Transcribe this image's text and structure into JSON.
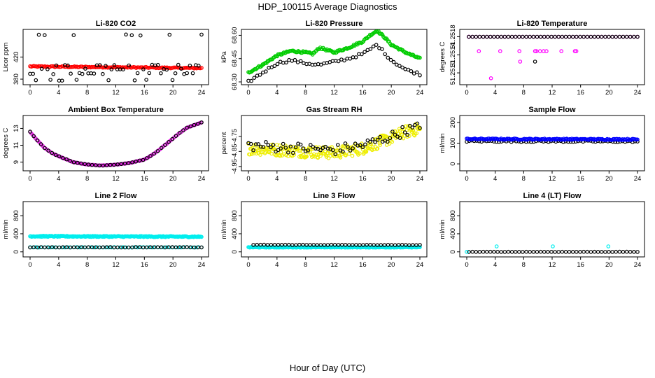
{
  "title": "HDP_100115  Average Diagnostics",
  "xlabel": "Hour of Day (UTC)",
  "chart_data": [
    {
      "type": "scatter",
      "title": "Li-820 CO2",
      "ylabel": "Licor ppm",
      "xlim": [
        0,
        24
      ],
      "ylim": [
        375,
        465
      ],
      "xticks": [
        0,
        4,
        8,
        12,
        16,
        20,
        24
      ],
      "xticklabels": [
        "0",
        "4",
        "8",
        "12",
        "16",
        "20",
        "24"
      ],
      "yticks": [
        380,
        420
      ],
      "yticklabels": [
        "380",
        "420"
      ],
      "series": [
        {
          "name": "CO2 red",
          "color": "#ff0000",
          "gen": "line",
          "x0": 0,
          "x1": 24,
          "y0": 403,
          "y1": 400,
          "spread": 1,
          "n": 140
        },
        {
          "name": "CO2 black",
          "color": "#000000",
          "gen": "levels",
          "levels": [
            378,
            390,
            398,
            405,
            460
          ],
          "n": 60
        }
      ]
    },
    {
      "type": "scatter",
      "title": "Li-820 Pressure",
      "ylabel": "kPa",
      "xlim": [
        0,
        24
      ],
      "ylim": [
        68.3,
        68.62
      ],
      "xticks": [
        0,
        4,
        8,
        12,
        16,
        20,
        24
      ],
      "xticklabels": [
        "0",
        "4",
        "8",
        "12",
        "16",
        "20",
        "24"
      ],
      "yticks": [
        68.3,
        68.45,
        68.6
      ],
      "yticklabels": [
        "68.30",
        "68.45",
        "68.60"
      ],
      "series": [
        {
          "name": "Pressure green",
          "color": "#00cc00",
          "gen": "path",
          "x": [
            0,
            2,
            4,
            6,
            8,
            9,
            10,
            12,
            14,
            16,
            17,
            18,
            19,
            20,
            22,
            24
          ],
          "y": [
            68.36,
            68.41,
            68.47,
            68.5,
            68.49,
            68.48,
            68.52,
            68.49,
            68.52,
            68.56,
            68.6,
            68.63,
            68.59,
            68.54,
            68.49,
            68.45
          ],
          "spread": 0.006,
          "n": 180
        },
        {
          "name": "Pressure black",
          "color": "#000000",
          "gen": "path",
          "x": [
            0,
            2,
            4,
            6,
            8,
            10,
            12,
            14,
            16,
            18,
            20,
            22,
            24
          ],
          "y": [
            68.3,
            68.36,
            68.42,
            68.44,
            68.42,
            68.41,
            68.43,
            68.45,
            68.48,
            68.54,
            68.44,
            68.38,
            68.35
          ],
          "spread": 0.008,
          "n": 60
        }
      ]
    },
    {
      "type": "scatter",
      "title": "Li-820 Temperature",
      "ylabel": "degrees C",
      "xlim": [
        0,
        24
      ],
      "ylim": [
        51.2508,
        51.2519
      ],
      "xticks": [
        0,
        4,
        8,
        12,
        16,
        20,
        24
      ],
      "xticklabels": [
        "0",
        "4",
        "8",
        "12",
        "16",
        "20",
        "24"
      ],
      "yticks": [
        51.251,
        51.2514,
        51.2518
      ],
      "yticklabels": [
        "51.2510",
        "51.2514",
        "51.2518"
      ],
      "series": [
        {
          "name": "Temperature magenta",
          "color": "#ff00ff",
          "gen": "scatterpts",
          "x": [
            0.3,
            1.7,
            3.4,
            4.7,
            7.4,
            7.5,
            9.6,
            9.8,
            10.3,
            10.8,
            11.2,
            13.3,
            15.2,
            15.4
          ],
          "y": [
            51.2518,
            51.25148,
            51.25088,
            51.25148,
            51.25148,
            51.25125,
            51.25148,
            51.25148,
            51.25148,
            51.25148,
            51.25148,
            51.25148,
            51.25148,
            51.25148
          ],
          "fill": [
            51.2518
          ],
          "n": 48
        },
        {
          "name": "Temperature black",
          "color": "#000000",
          "gen": "scatterpts",
          "x": [
            9.6
          ],
          "y": [
            51.25125
          ],
          "fill": [
            51.2518
          ],
          "n": 48
        }
      ]
    },
    {
      "type": "scatter",
      "title": "Ambient Box Temperature",
      "ylabel": "degrees C",
      "xlim": [
        0,
        24
      ],
      "ylim": [
        8.3,
        14.2
      ],
      "xticks": [
        0,
        4,
        8,
        12,
        16,
        20,
        24
      ],
      "xticklabels": [
        "0",
        "4",
        "8",
        "12",
        "16",
        "20",
        "24"
      ],
      "yticks": [
        9,
        11,
        13
      ],
      "yticklabels": [
        "9",
        "11",
        "13"
      ],
      "series": [
        {
          "name": "Box temp magenta",
          "color": "#dd22dd",
          "gen": "path",
          "x": [
            0,
            1,
            2,
            3,
            4,
            6,
            8,
            10,
            12,
            14,
            16,
            17,
            18,
            19,
            20,
            21,
            22,
            23,
            24
          ],
          "y": [
            12.6,
            11.6,
            10.7,
            10.1,
            9.7,
            9.0,
            8.7,
            8.6,
            8.7,
            8.9,
            9.3,
            9.8,
            10.4,
            11.1,
            11.8,
            12.5,
            13.1,
            13.4,
            13.7
          ],
          "spread": 0.02,
          "n": 150
        },
        {
          "name": "Box temp black",
          "color": "#000000",
          "gen": "path",
          "x": [
            0,
            1,
            2,
            3,
            4,
            6,
            8,
            10,
            12,
            14,
            16,
            17,
            18,
            19,
            20,
            21,
            22,
            23,
            24
          ],
          "y": [
            12.6,
            11.6,
            10.7,
            10.1,
            9.7,
            9.0,
            8.7,
            8.6,
            8.7,
            8.9,
            9.3,
            9.8,
            10.4,
            11.1,
            11.8,
            12.5,
            13.1,
            13.4,
            13.7
          ],
          "spread": 0.02,
          "n": 48
        }
      ]
    },
    {
      "type": "scatter",
      "title": "Gas Stream RH",
      "ylabel": "percent",
      "xlim": [
        0,
        24
      ],
      "ylim": [
        -4.96,
        -4.63
      ],
      "xticks": [
        0,
        4,
        8,
        12,
        16,
        20,
        24
      ],
      "xticklabels": [
        "0",
        "4",
        "8",
        "12",
        "16",
        "20",
        "24"
      ],
      "yticks": [
        -4.95,
        -4.85,
        -4.75
      ],
      "yticklabels": [
        "-4.95",
        "-4.85",
        "-4.75"
      ],
      "series": [
        {
          "name": "RH yellow",
          "color": "#eeee00",
          "gen": "path",
          "x": [
            0,
            4,
            8,
            12,
            16,
            20,
            22,
            24
          ],
          "y": [
            -4.83,
            -4.84,
            -4.85,
            -4.86,
            -4.83,
            -4.76,
            -4.72,
            -4.7
          ],
          "spread": 0.04,
          "n": 260
        },
        {
          "name": "RH black",
          "color": "#000000",
          "gen": "path",
          "x": [
            0,
            4,
            8,
            12,
            16,
            20,
            22,
            24
          ],
          "y": [
            -4.81,
            -4.82,
            -4.83,
            -4.84,
            -4.81,
            -4.75,
            -4.71,
            -4.69
          ],
          "spread": 0.035,
          "n": 70
        }
      ]
    },
    {
      "type": "scatter",
      "title": "Sample Flow",
      "ylabel": "ml/min",
      "xlim": [
        0,
        24
      ],
      "ylim": [
        -20,
        220
      ],
      "xticks": [
        0,
        4,
        8,
        12,
        16,
        20,
        24
      ],
      "xticklabels": [
        "0",
        "4",
        "8",
        "12",
        "16",
        "20",
        "24"
      ],
      "yticks": [
        0,
        100,
        200
      ],
      "yticklabels": [
        "0",
        "100",
        "200"
      ],
      "series": [
        {
          "name": "Sample flow black",
          "color": "#000000",
          "gen": "line",
          "x0": 0,
          "x1": 24,
          "y0": 110,
          "y1": 108,
          "spread": 4,
          "n": 70
        },
        {
          "name": "Sample flow blue",
          "color": "#0000ff",
          "gen": "line",
          "x0": 0,
          "x1": 24,
          "y0": 120,
          "y1": 118,
          "spread": 3,
          "n": 170
        }
      ]
    },
    {
      "type": "scatter",
      "title": "Line 2 Flow",
      "ylabel": "ml/min",
      "xlim": [
        0,
        24
      ],
      "ylim": [
        -50,
        1050
      ],
      "xticks": [
        0,
        4,
        8,
        12,
        16,
        20,
        24
      ],
      "xticklabels": [
        "0",
        "4",
        "8",
        "12",
        "16",
        "20",
        "24"
      ],
      "yticks": [
        0,
        400,
        800
      ],
      "yticklabels": [
        "0",
        "400",
        "800"
      ],
      "series": [
        {
          "name": "Line 2 cyan",
          "color": "#00eeee",
          "gen": "line",
          "x0": 0,
          "x1": 24,
          "y0": 345,
          "y1": 335,
          "spread": 12,
          "n": 220
        },
        {
          "name": "Line 2 cyan low",
          "color": "#00eeee",
          "gen": "line",
          "x0": 0,
          "x1": 24,
          "y0": 100,
          "y1": 100,
          "spread": 4,
          "n": 60
        },
        {
          "name": "Line 2 black",
          "color": "#000000",
          "gen": "line",
          "x0": 0,
          "x1": 24,
          "y0": 100,
          "y1": 100,
          "spread": 3,
          "n": 48
        }
      ]
    },
    {
      "type": "scatter",
      "title": "Line 3 Flow",
      "ylabel": "ml/min",
      "xlim": [
        0,
        24
      ],
      "ylim": [
        -50,
        1050
      ],
      "xticks": [
        0,
        4,
        8,
        12,
        16,
        20,
        24
      ],
      "xticklabels": [
        "0",
        "4",
        "8",
        "12",
        "16",
        "20",
        "24"
      ],
      "yticks": [
        0,
        400,
        800
      ],
      "yticklabels": [
        "0",
        "400",
        "800"
      ],
      "series": [
        {
          "name": "Line 3 cyan",
          "color": "#00eeee",
          "gen": "line",
          "x0": 0,
          "x1": 24,
          "y0": 100,
          "y1": 100,
          "spread": 6,
          "n": 220
        },
        {
          "name": "Line 3 black",
          "color": "#000000",
          "gen": "line",
          "x0": 0.7,
          "x1": 24,
          "y0": 155,
          "y1": 150,
          "spread": 4,
          "n": 48
        }
      ]
    },
    {
      "type": "scatter",
      "title": "Line 4 (LT) Flow",
      "ylabel": "ml/min",
      "xlim": [
        0,
        24
      ],
      "ylim": [
        -50,
        1050
      ],
      "xticks": [
        0,
        4,
        8,
        12,
        16,
        20,
        24
      ],
      "xticklabels": [
        "0",
        "4",
        "8",
        "12",
        "16",
        "20",
        "24"
      ],
      "yticks": [
        0,
        400,
        800
      ],
      "yticklabels": [
        "0",
        "400",
        "800"
      ],
      "series": [
        {
          "name": "Line 4 black",
          "color": "#000000",
          "gen": "line",
          "x0": 0.3,
          "x1": 24,
          "y0": 0,
          "y1": 0,
          "spread": 2,
          "n": 48
        },
        {
          "name": "Line 4 cyan",
          "color": "#00eeee",
          "gen": "scatterpts",
          "x": [
            0,
            4.2,
            12.1,
            19.9
          ],
          "y": [
            0,
            120,
            120,
            120
          ],
          "fill": [],
          "n": 0
        }
      ]
    }
  ]
}
